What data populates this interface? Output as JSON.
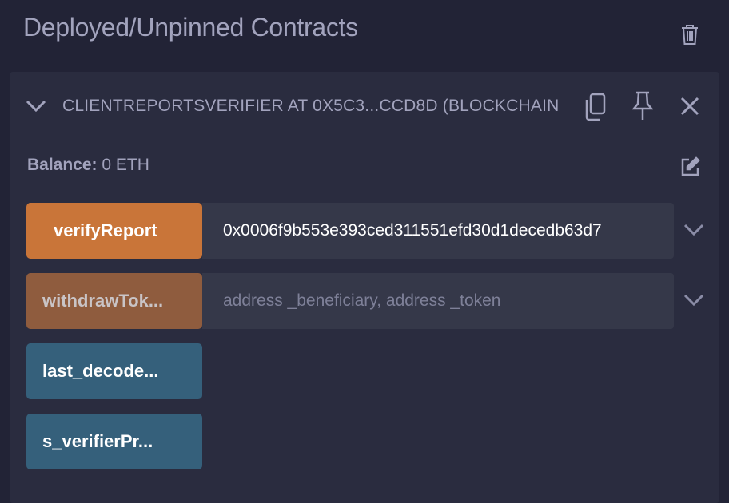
{
  "panel": {
    "title": "Deployed/Unpinned Contracts",
    "delete_icon": "trash-icon"
  },
  "contract": {
    "header": "CLIENTREPORTSVERIFIER AT 0X5C3...CCD8D (BLOCKCHAIN)",
    "balance_label": "Balance:",
    "balance_value": "0 ETH",
    "functions": [
      {
        "label": "verifyReport",
        "value": "0x0006f9b553e393ced311551efd30d1decedb63d7",
        "placeholder": "",
        "color": "#c97539"
      },
      {
        "label": "withdrawTok...",
        "value": "",
        "placeholder": "address _beneficiary, address _token",
        "color": "#8f5c3e"
      },
      {
        "label": "last_decode...",
        "color": "#35607b"
      },
      {
        "label": "s_verifierPr...",
        "color": "#35607b"
      }
    ]
  }
}
